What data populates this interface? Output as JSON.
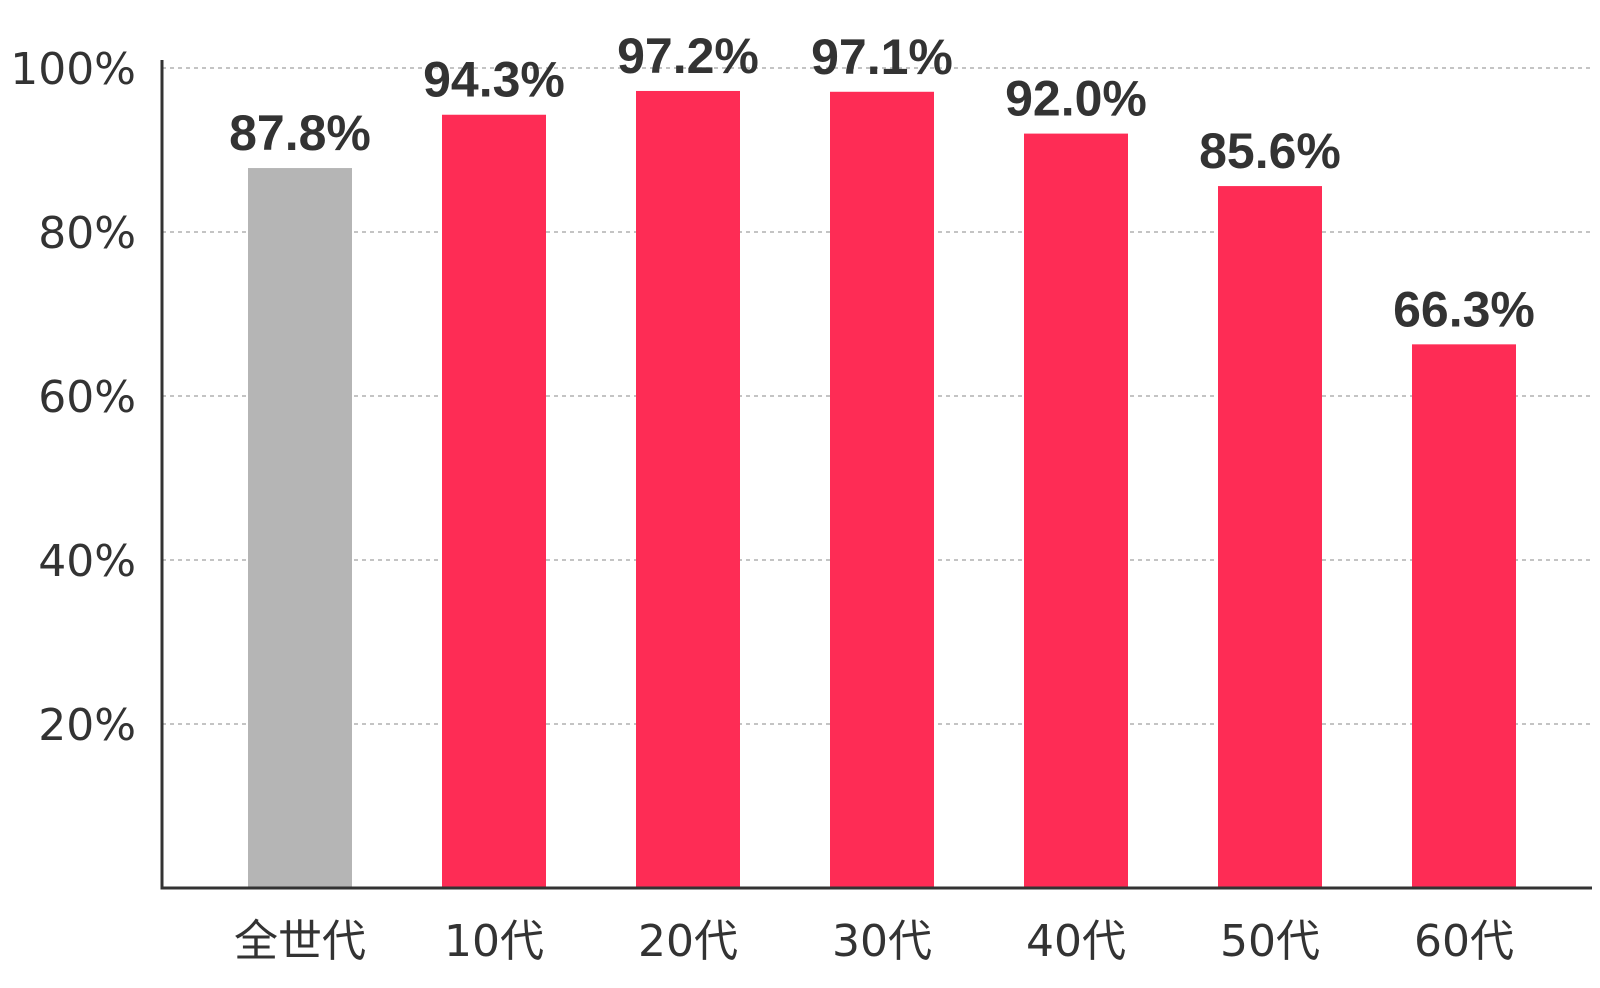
{
  "chart_data": {
    "type": "bar",
    "title": "",
    "xlabel": "",
    "ylabel": "",
    "categories": [
      "全世代",
      "10代",
      "20代",
      "30代",
      "40代",
      "50代",
      "60代"
    ],
    "values": [
      87.8,
      94.3,
      97.2,
      97.1,
      92.0,
      85.6,
      66.3
    ],
    "value_labels": [
      "87.8%",
      "94.3%",
      "97.2%",
      "97.1%",
      "92.0%",
      "85.6%",
      "66.3%"
    ],
    "bar_colors": [
      "#b5b5b5",
      "#fe2c55",
      "#fe2c55",
      "#fe2c55",
      "#fe2c55",
      "#fe2c55",
      "#fe2c55"
    ],
    "ylim": [
      0,
      100
    ],
    "yticks": [
      20,
      40,
      60,
      80,
      100
    ],
    "ytick_labels": [
      "20%",
      "40%",
      "60%",
      "80%",
      "100%"
    ],
    "grid": true,
    "legend": "none"
  }
}
